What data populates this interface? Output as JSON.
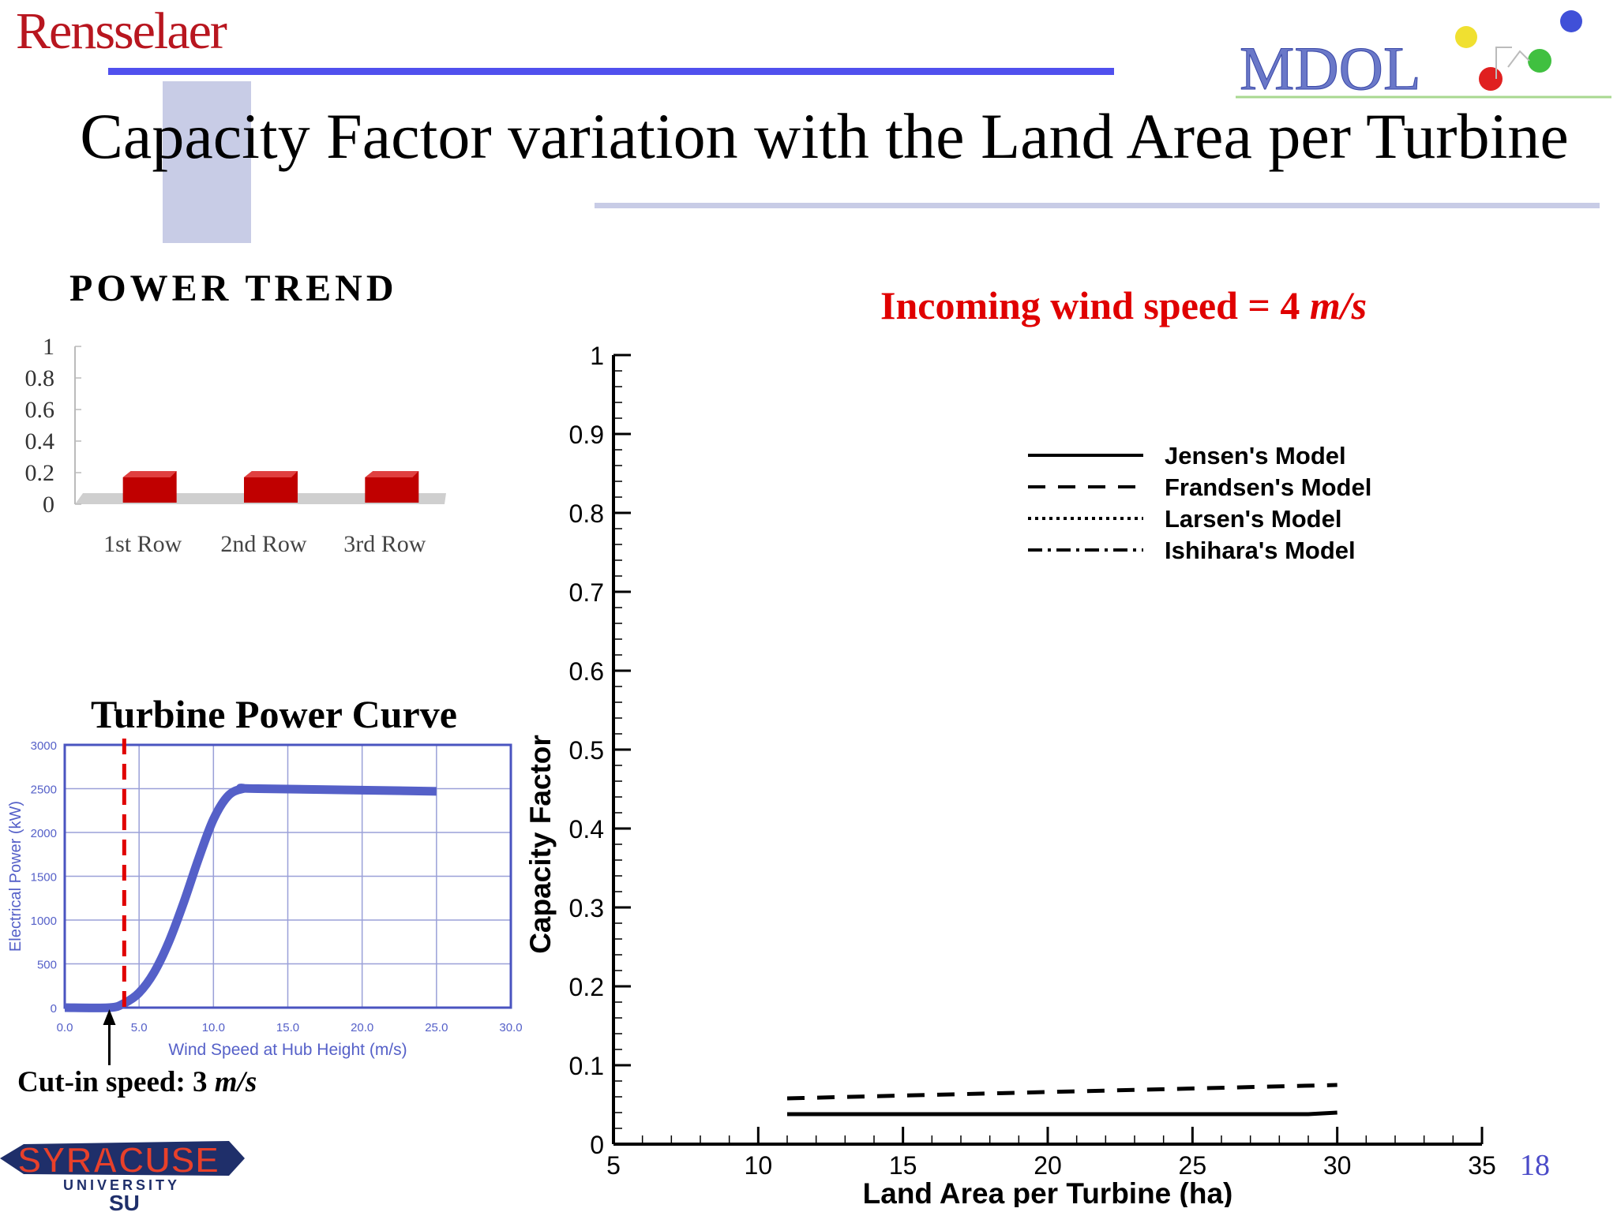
{
  "slide": {
    "logo_left": "Rensselaer",
    "logo_right": "MDOL",
    "title": "Capacity Factor variation with the Land Area per Turbine",
    "page_number": "18",
    "logo_bottom_top": "SYRACUSE",
    "logo_bottom_mid": "UNIVERSITY",
    "logo_bottom_mark": "SU"
  },
  "power_trend": {
    "heading": "POWER TREND"
  },
  "turbine_power_curve": {
    "heading": "Turbine Power Curve",
    "cutin_label": "Cut-in speed: 3",
    "cutin_unit": "m/s"
  },
  "subtitle": {
    "text": "Incoming wind speed = 4",
    "unit": "m/s"
  },
  "colors": {
    "red": "#e00000",
    "blue": "#5050ee",
    "curve_blue": "#5560c8",
    "bar_red": "#c00000"
  },
  "chart_data": [
    {
      "id": "power-trend",
      "type": "bar",
      "categories": [
        "1st Row",
        "2nd Row",
        "3rd Row"
      ],
      "values": [
        0.1,
        0.1,
        0.1
      ],
      "ylim": [
        0,
        1
      ],
      "yticks": [
        "0",
        "0.2",
        "0.4",
        "0.6",
        "0.8",
        "1"
      ],
      "ytick_values": [
        0,
        0.2,
        0.4,
        0.6,
        0.8,
        1
      ]
    },
    {
      "id": "turbine-power-curve",
      "type": "line",
      "xlabel": "Wind Speed at Hub Height (m/s)",
      "ylabel": "Electrical Power (kW)",
      "xlim": [
        0,
        30
      ],
      "ylim": [
        0,
        3000
      ],
      "xticks": [
        "0.0",
        "5.0",
        "10.0",
        "15.0",
        "20.0",
        "25.0",
        "30.0"
      ],
      "xtick_values": [
        0,
        5,
        10,
        15,
        20,
        25,
        30
      ],
      "yticks": [
        "0",
        "500",
        "1000",
        "1500",
        "2000",
        "2500",
        "3000"
      ],
      "ytick_values": [
        0,
        500,
        1000,
        1500,
        2000,
        2500,
        3000
      ],
      "x": [
        0,
        3,
        4,
        5,
        6,
        7,
        8,
        9,
        10,
        11,
        12,
        13,
        25
      ],
      "y": [
        0,
        0,
        50,
        170,
        400,
        750,
        1200,
        1700,
        2150,
        2420,
        2500,
        2500,
        2470
      ],
      "cutin_marker_x": 4
    },
    {
      "id": "capacity-factor",
      "type": "line",
      "xlabel": "Land Area per Turbine (ha)",
      "ylabel": "Capacity Factor",
      "xlim": [
        5,
        35
      ],
      "ylim": [
        0,
        1
      ],
      "xticks": [
        "5",
        "10",
        "15",
        "20",
        "25",
        "30",
        "35"
      ],
      "xtick_values": [
        5,
        10,
        15,
        20,
        25,
        30,
        35
      ],
      "yticks": [
        "0",
        "0.1",
        "0.2",
        "0.3",
        "0.4",
        "0.5",
        "0.6",
        "0.7",
        "0.8",
        "0.9",
        "1"
      ],
      "ytick_values": [
        0,
        0.1,
        0.2,
        0.3,
        0.4,
        0.5,
        0.6,
        0.7,
        0.8,
        0.9,
        1
      ],
      "legend_position": "top-right",
      "series": [
        {
          "name": "Jensen's Model",
          "dash": "solid",
          "x": [
            11,
            29,
            30
          ],
          "y": [
            0.038,
            0.038,
            0.04
          ]
        },
        {
          "name": "Frandsen's Model",
          "dash": "dashed",
          "x": [
            11,
            30
          ],
          "y": [
            0.058,
            0.075
          ]
        },
        {
          "name": "Larsen's Model",
          "dash": "dotted",
          "x": [],
          "y": []
        },
        {
          "name": "Ishihara's Model",
          "dash": "dashdot",
          "x": [],
          "y": []
        }
      ]
    }
  ]
}
